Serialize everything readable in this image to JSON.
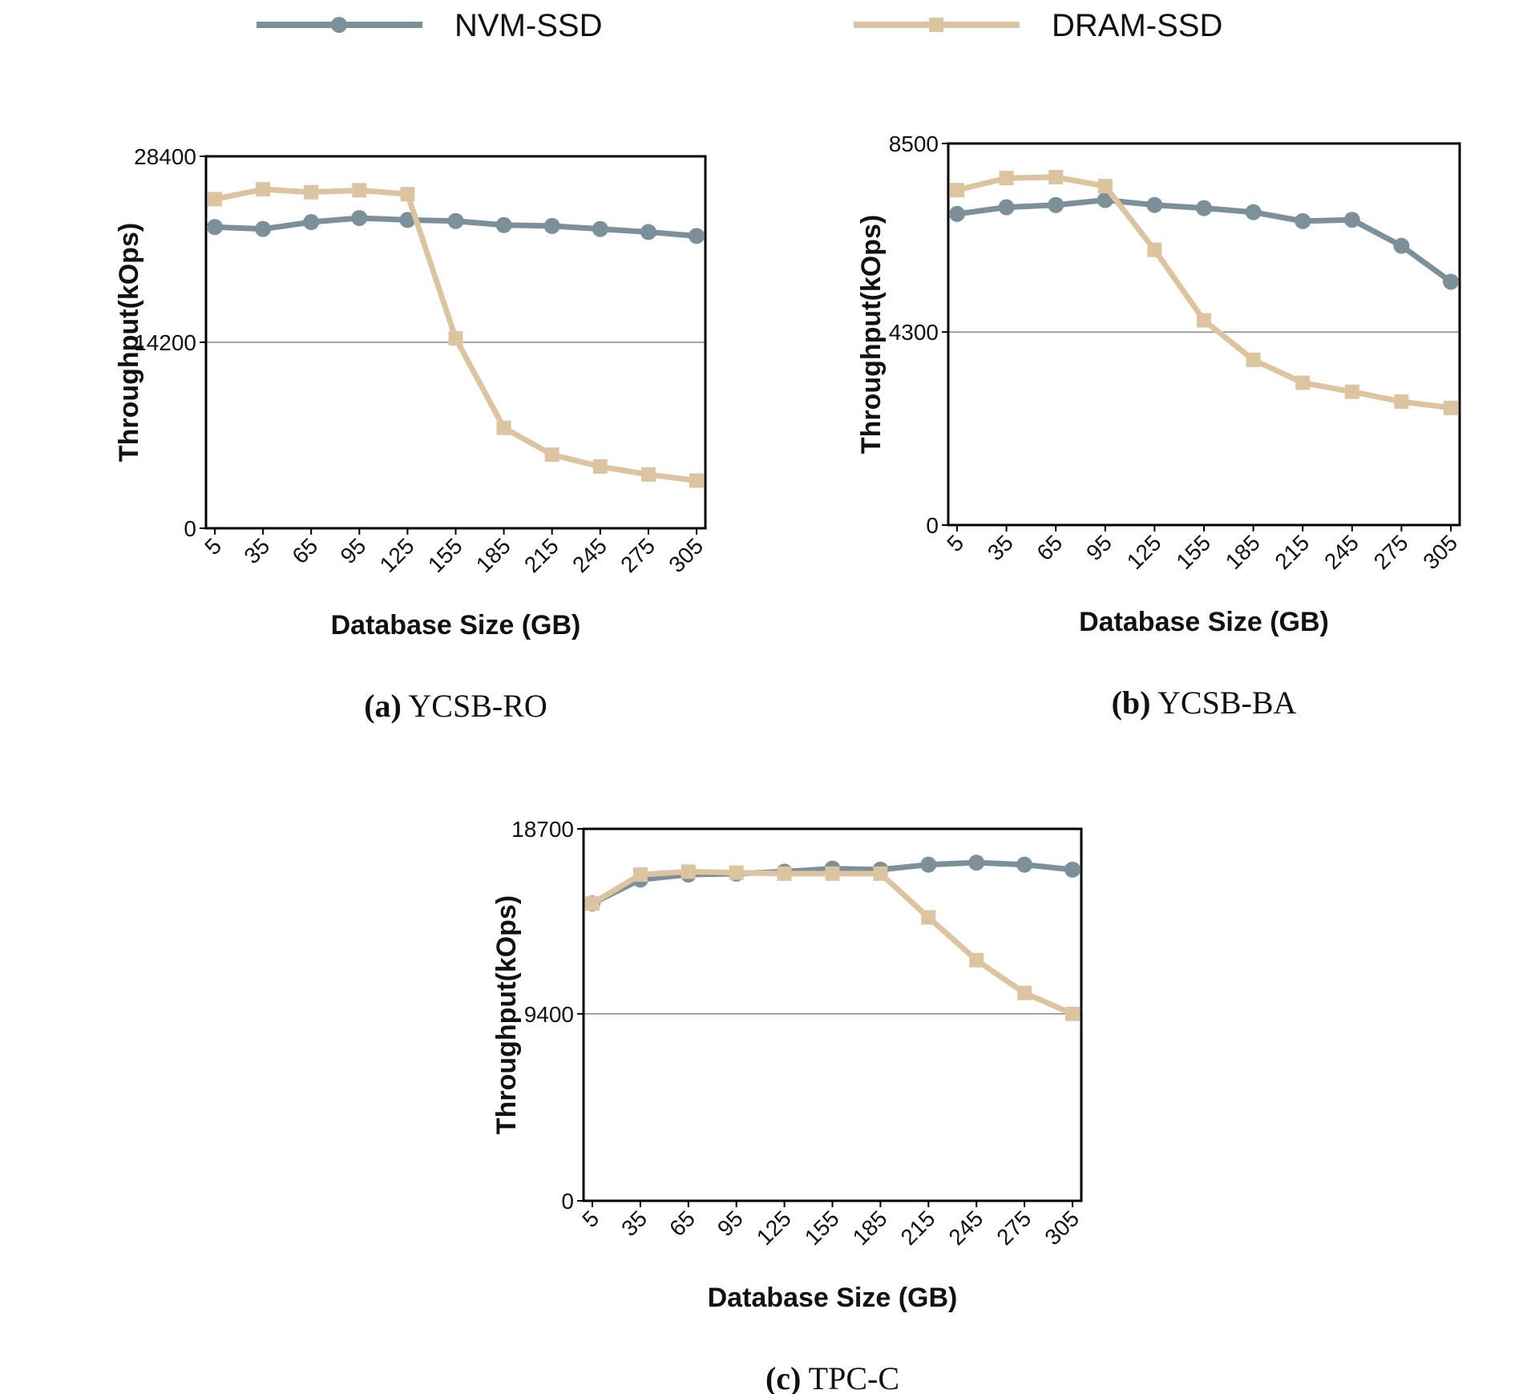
{
  "chart_data": [
    {
      "type": "line",
      "caption_tag": "(a)",
      "caption": "YCSB-RO",
      "x_label": "Database Size (GB)",
      "y_label": "Throughput(kOps)",
      "legend": "top",
      "grid": true,
      "categories": [
        "5",
        "35",
        "65",
        "95",
        "125",
        "155",
        "185",
        "215",
        "245",
        "275",
        "305"
      ],
      "ylim": [
        0,
        28400
      ],
      "yticks": [
        0,
        14200,
        28400
      ],
      "series": [
        {
          "name": "NVM-SSD",
          "color": "#7b9099",
          "marker": "circle",
          "values": [
            23000,
            22850,
            23380,
            23690,
            23540,
            23460,
            23150,
            23080,
            22850,
            22620,
            22320
          ]
        },
        {
          "name": "DRAM-SSD",
          "color": "#dcc4a0",
          "marker": "square",
          "values": [
            25130,
            25880,
            25660,
            25810,
            25510,
            14500,
            7670,
            5620,
            4710,
            4100,
            3640
          ]
        }
      ]
    },
    {
      "type": "line",
      "caption_tag": "(b)",
      "caption": "YCSB-BA",
      "x_label": "Database Size (GB)",
      "y_label": "Throughput(kOps)",
      "grid": true,
      "categories": [
        "5",
        "35",
        "65",
        "95",
        "125",
        "155",
        "185",
        "215",
        "245",
        "275",
        "305"
      ],
      "ylim": [
        0,
        8500
      ],
      "yticks": [
        0,
        4300,
        8500
      ],
      "series": [
        {
          "color": "#7b9099",
          "marker": "circle",
          "values": [
            6930,
            7080,
            7130,
            7240,
            7130,
            7060,
            6970,
            6770,
            6800,
            6220,
            5420
          ]
        },
        {
          "color": "#dcc4a0",
          "marker": "square",
          "values": [
            7460,
            7730,
            7750,
            7550,
            6130,
            4560,
            3680,
            3170,
            2970,
            2750,
            2610
          ]
        }
      ]
    },
    {
      "type": "line",
      "caption_tag": "(c)",
      "caption": "TPC-C",
      "x_label": "Database Size (GB)",
      "y_label": "Throughput(kOps)",
      "grid": true,
      "categories": [
        "5",
        "35",
        "65",
        "95",
        "125",
        "155",
        "185",
        "215",
        "245",
        "275",
        "305"
      ],
      "ylim": [
        0,
        18700
      ],
      "yticks": [
        0,
        9400,
        18700
      ],
      "series": [
        {
          "color": "#7b9099",
          "marker": "circle",
          "values": [
            14950,
            16150,
            16400,
            16450,
            16550,
            16700,
            16650,
            16900,
            17000,
            16900,
            16650
          ]
        },
        {
          "color": "#dcc4a0",
          "marker": "square",
          "values": [
            14950,
            16400,
            16550,
            16500,
            16450,
            16450,
            16450,
            14250,
            12100,
            10450,
            9400
          ]
        }
      ]
    }
  ]
}
